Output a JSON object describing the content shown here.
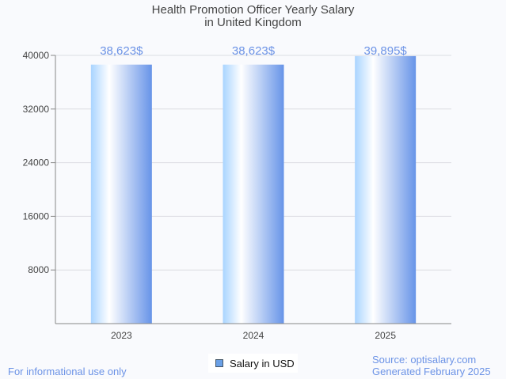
{
  "chart_data": {
    "type": "bar",
    "title": "Health Promotion Officer Yearly Salary",
    "subtitle": "in United Kingdom",
    "categories": [
      "2023",
      "2024",
      "2025"
    ],
    "values": [
      38623,
      38623,
      39895
    ],
    "data_labels": [
      "38,623$",
      "38,623$",
      "39,895$"
    ],
    "yticks": [
      8000,
      16000,
      24000,
      32000,
      40000
    ],
    "ylim": [
      0,
      40000
    ],
    "xlabel": "",
    "ylabel": "",
    "grid": true,
    "legend": {
      "label": "Salary in USD",
      "placement": "bottom-center"
    },
    "colors": {
      "bar_light": "#a9d4ff",
      "bar_mid": "#ffffff",
      "bar_dark": "#6794e8",
      "label": "#6c93e6"
    }
  },
  "footer": {
    "left": "For informational use only",
    "source": "Source: optisalary.com",
    "generated": "Generated February 2025"
  }
}
